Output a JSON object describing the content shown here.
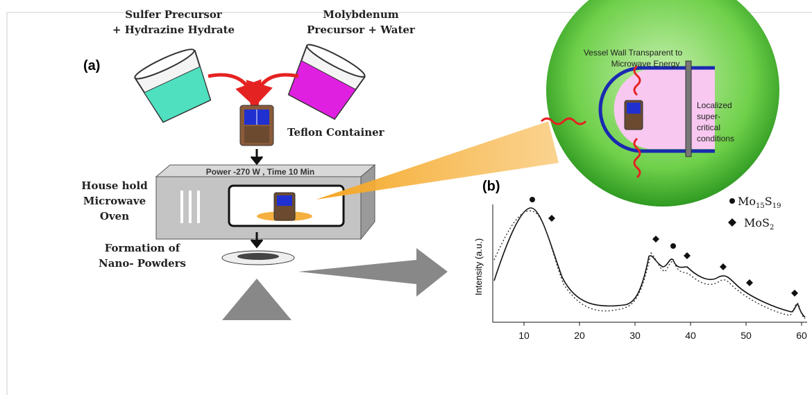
{
  "labels": {
    "sulfur": [
      "Sulfer Precursor",
      "+ Hydrazine Hydrate"
    ],
    "molybdenum": [
      "Molybdenum",
      "Precursor + Water"
    ],
    "panel_a": "(a)",
    "teflon": "Teflon Container",
    "power": "Power -270 W , Time 10 Min",
    "oven": [
      "House hold",
      "Microwave",
      "Oven"
    ],
    "formation": [
      "Formation of",
      "Nano- Powders"
    ],
    "vessel": [
      "Vessel Wall Transparent to",
      "Microwave Energy"
    ],
    "localized": [
      "Localized",
      "super-",
      "critical",
      "conditions"
    ]
  },
  "plot": {
    "panel": "(b)",
    "ylabel": "Intensity (a.u.)",
    "legend": [
      [
        "Mo",
        "15",
        "S",
        "19"
      ],
      [
        "MoS",
        "2"
      ]
    ],
    "xlim": [
      5,
      61
    ],
    "xticks": [
      10,
      20,
      30,
      40,
      50,
      60
    ]
  }
}
